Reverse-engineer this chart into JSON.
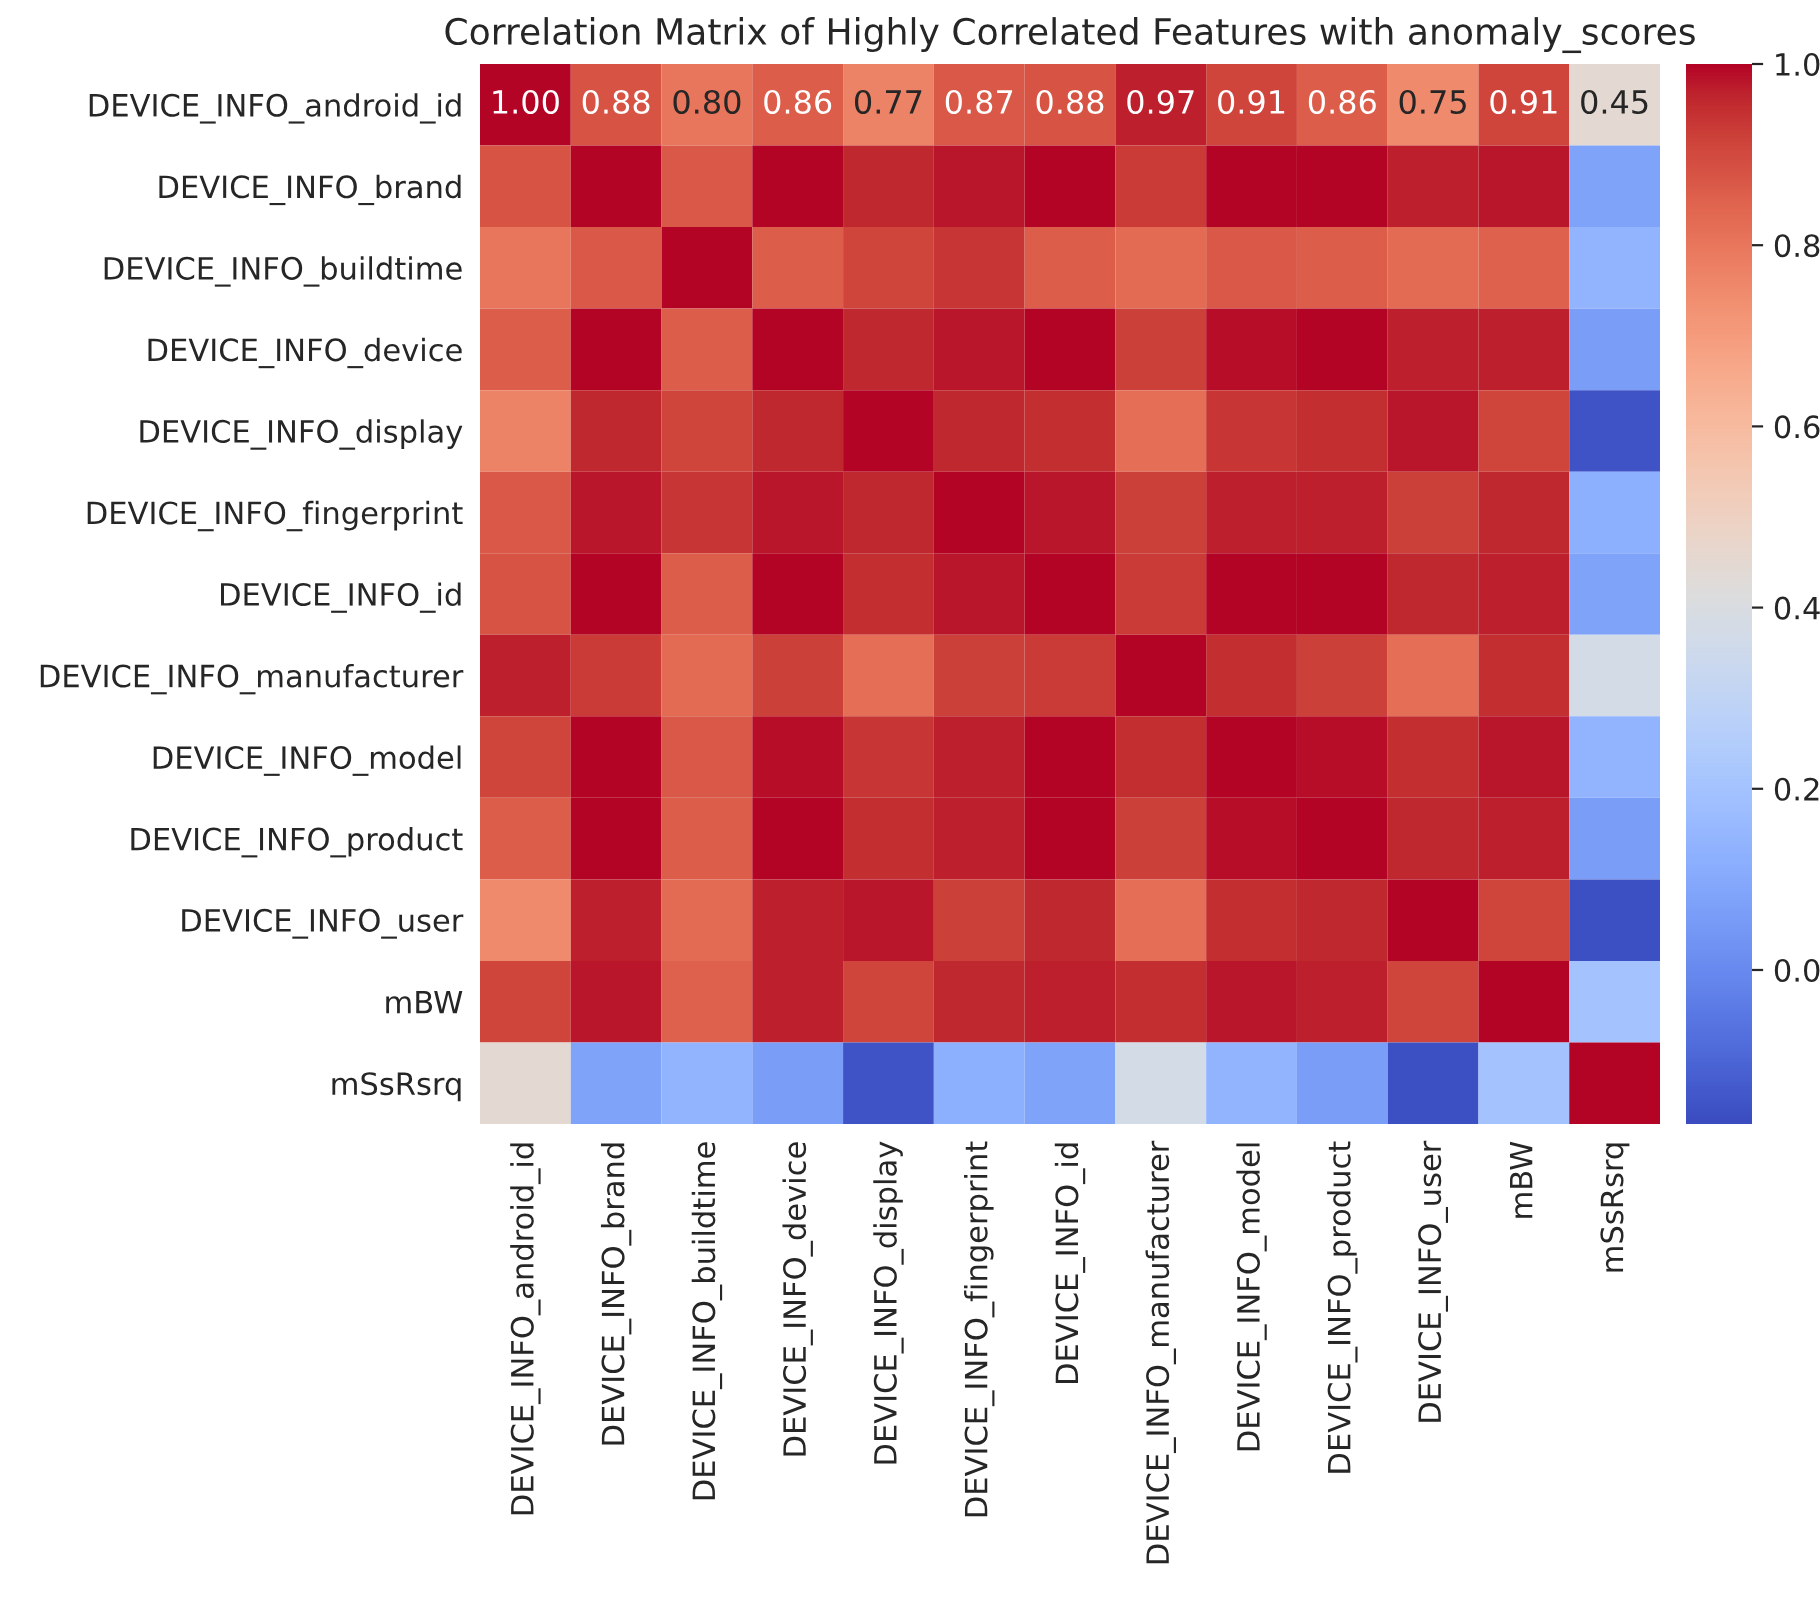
{
  "chart_data": {
    "type": "heatmap",
    "title": "Correlation Matrix of Highly Correlated Features with anomaly_scores",
    "categories": [
      "DEVICE_INFO_android_id",
      "DEVICE_INFO_brand",
      "DEVICE_INFO_buildtime",
      "DEVICE_INFO_device",
      "DEVICE_INFO_display",
      "DEVICE_INFO_fingerprint",
      "DEVICE_INFO_id",
      "DEVICE_INFO_manufacturer",
      "DEVICE_INFO_model",
      "DEVICE_INFO_product",
      "DEVICE_INFO_user",
      "mBW",
      "mSsRsrq"
    ],
    "y_categories": [
      "DEVICE_INFO_android_id",
      "DEVICE_INFO_brand",
      "DEVICE_INFO_buildtime",
      "DEVICE_INFO_device",
      "DEVICE_INFO_display",
      "DEVICE_INFO_fingerprint",
      "DEVICE_INFO_id",
      "DEVICE_INFO_manufacturer",
      "DEVICE_INFO_model",
      "DEVICE_INFO_product",
      "DEVICE_INFO_user",
      "mBW",
      "mSsRsrq"
    ],
    "cells": [
      [
        1.0,
        0.88,
        0.8,
        0.86,
        0.77,
        0.87,
        0.88,
        0.97,
        0.91,
        0.86,
        0.75,
        0.91,
        0.45
      ],
      [
        0.88,
        1.0,
        0.87,
        1.0,
        0.96,
        0.98,
        1.0,
        0.93,
        1.0,
        1.0,
        0.97,
        0.98,
        0.08
      ],
      [
        0.8,
        0.87,
        1.0,
        0.86,
        0.91,
        0.94,
        0.86,
        0.83,
        0.87,
        0.86,
        0.83,
        0.85,
        0.14
      ],
      [
        0.86,
        1.0,
        0.86,
        1.0,
        0.96,
        0.98,
        1.0,
        0.92,
        0.99,
        1.0,
        0.97,
        0.97,
        0.06
      ],
      [
        0.77,
        0.96,
        0.91,
        0.96,
        1.0,
        0.96,
        0.95,
        0.82,
        0.94,
        0.95,
        0.98,
        0.91,
        -0.15
      ],
      [
        0.87,
        0.98,
        0.94,
        0.98,
        0.96,
        1.0,
        0.98,
        0.92,
        0.97,
        0.97,
        0.92,
        0.96,
        0.12
      ],
      [
        0.88,
        1.0,
        0.86,
        1.0,
        0.95,
        0.98,
        1.0,
        0.93,
        1.0,
        1.0,
        0.96,
        0.97,
        0.08
      ],
      [
        0.97,
        0.93,
        0.83,
        0.92,
        0.82,
        0.92,
        0.93,
        1.0,
        0.95,
        0.92,
        0.82,
        0.95,
        0.37
      ],
      [
        0.91,
        1.0,
        0.87,
        0.99,
        0.94,
        0.97,
        1.0,
        0.95,
        1.0,
        0.99,
        0.95,
        0.98,
        0.14
      ],
      [
        0.86,
        1.0,
        0.86,
        1.0,
        0.95,
        0.97,
        1.0,
        0.92,
        0.99,
        1.0,
        0.96,
        0.97,
        0.06
      ],
      [
        0.75,
        0.97,
        0.83,
        0.97,
        0.98,
        0.92,
        0.96,
        0.82,
        0.95,
        0.96,
        1.0,
        0.91,
        -0.16
      ],
      [
        0.91,
        0.98,
        0.85,
        0.97,
        0.91,
        0.96,
        0.97,
        0.95,
        0.98,
        0.97,
        0.91,
        1.0,
        0.2
      ],
      [
        0.45,
        0.08,
        0.14,
        0.06,
        -0.15,
        0.12,
        0.08,
        0.37,
        0.14,
        0.06,
        -0.16,
        0.2,
        1.0
      ]
    ],
    "cell_labels": [
      [
        "1.00",
        "0.88",
        "0.80",
        "0.86",
        "0.77",
        "0.87",
        "0.88",
        "0.97",
        "0.91",
        "0.86",
        "0.75",
        "0.91",
        "0.45"
      ],
      [
        null,
        null,
        null,
        null,
        null,
        null,
        null,
        null,
        null,
        null,
        null,
        null,
        null
      ],
      [
        null,
        null,
        null,
        null,
        null,
        null,
        null,
        null,
        null,
        null,
        null,
        null,
        null
      ],
      [
        null,
        null,
        null,
        null,
        null,
        null,
        null,
        null,
        null,
        null,
        null,
        null,
        null
      ],
      [
        null,
        null,
        null,
        null,
        null,
        null,
        null,
        null,
        null,
        null,
        null,
        null,
        null
      ],
      [
        null,
        null,
        null,
        null,
        null,
        null,
        null,
        null,
        null,
        null,
        null,
        null,
        null
      ],
      [
        null,
        null,
        null,
        null,
        null,
        null,
        null,
        null,
        null,
        null,
        null,
        null,
        null
      ],
      [
        null,
        null,
        null,
        null,
        null,
        null,
        null,
        null,
        null,
        null,
        null,
        null,
        null
      ],
      [
        null,
        null,
        null,
        null,
        null,
        null,
        null,
        null,
        null,
        null,
        null,
        null,
        null
      ],
      [
        null,
        null,
        null,
        null,
        null,
        null,
        null,
        null,
        null,
        null,
        null,
        null,
        null
      ],
      [
        null,
        null,
        null,
        null,
        null,
        null,
        null,
        null,
        null,
        null,
        null,
        null,
        null
      ],
      [
        null,
        null,
        null,
        null,
        null,
        null,
        null,
        null,
        null,
        null,
        null,
        null,
        null
      ],
      [
        null,
        null,
        null,
        null,
        null,
        null,
        null,
        null,
        null,
        null,
        null,
        null,
        null
      ]
    ],
    "clim": [
      -0.17,
      1.0
    ],
    "cticks": [
      {
        "value": 0.0,
        "label": "0.0"
      },
      {
        "value": 0.2,
        "label": "0.2"
      },
      {
        "value": 0.4,
        "label": "0.4"
      },
      {
        "value": 0.6,
        "label": "0.6"
      },
      {
        "value": 0.8,
        "label": "0.8"
      },
      {
        "value": 1.0,
        "label": "1.0"
      }
    ]
  }
}
